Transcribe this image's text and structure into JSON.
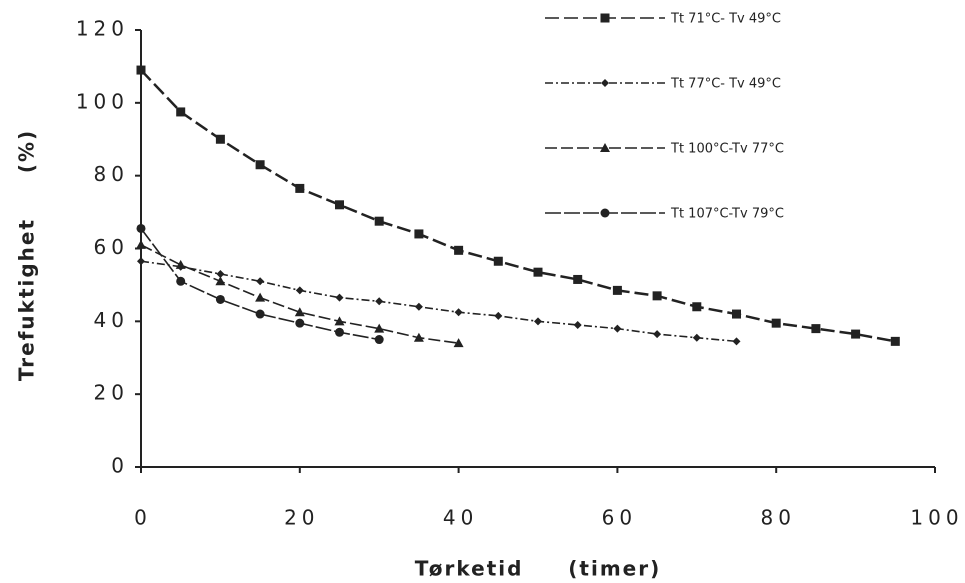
{
  "chart_data": {
    "type": "line",
    "xlabel": "Tørketid     (timer)",
    "ylabel": "Trefuktighet     (%)",
    "xlim": [
      0,
      100
    ],
    "xticks": [
      0,
      20,
      40,
      60,
      80,
      100
    ],
    "ylim": [
      0,
      120
    ],
    "yticks": [
      0,
      20,
      40,
      60,
      80,
      100,
      120
    ],
    "legend": "top-right",
    "series": [
      {
        "name": "Tt 71°C- Tv 49°C",
        "color": "#222222",
        "marker": "square",
        "dash": "14 5",
        "x": [
          0,
          5,
          10,
          15,
          20,
          25,
          30,
          35,
          40,
          45,
          50,
          55,
          60,
          65,
          70,
          75,
          80,
          85,
          90,
          95
        ],
        "values": [
          109,
          97.5,
          90,
          83,
          76.5,
          72,
          67.5,
          64,
          59.5,
          56.5,
          53.5,
          51.5,
          48.5,
          47,
          44,
          42,
          39.5,
          38,
          36.5,
          34.5
        ]
      },
      {
        "name": "Tt 77°C- Tv 49°C",
        "color": "#222222",
        "marker": "diamond",
        "dash": "8 3 2 3",
        "x": [
          0,
          5,
          10,
          15,
          20,
          25,
          30,
          35,
          40,
          45,
          50,
          55,
          60,
          65,
          70,
          75
        ],
        "values": [
          56.5,
          55,
          53,
          51,
          48.5,
          46.5,
          45.5,
          44,
          42.5,
          41.5,
          40,
          39,
          38,
          36.5,
          35.5,
          34.5
        ]
      },
      {
        "name": "Tt 100°C-Tv 77°C",
        "color": "#222222",
        "marker": "triangle",
        "dash": "12 4",
        "x": [
          0,
          5,
          10,
          15,
          20,
          25,
          30,
          35,
          40
        ],
        "values": [
          61,
          55.5,
          51,
          46.5,
          42.5,
          40,
          38,
          35.5,
          34
        ]
      },
      {
        "name": "Tt 107°C-Tv 79°C",
        "color": "#222222",
        "marker": "circle",
        "dash": "16 3",
        "x": [
          0,
          5,
          10,
          15,
          20,
          25,
          30
        ],
        "values": [
          65.5,
          51,
          46,
          42,
          39.5,
          37,
          35
        ]
      }
    ]
  }
}
